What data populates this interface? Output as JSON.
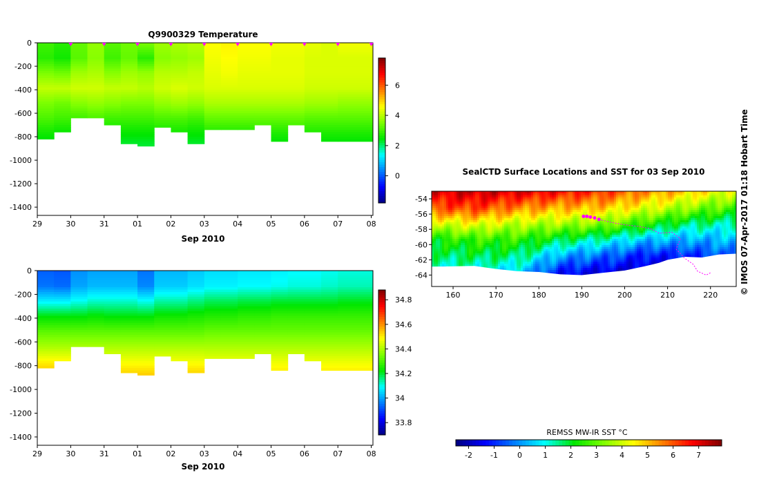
{
  "colors": {
    "jet": [
      "#00007f",
      "#0000ff",
      "#007fff",
      "#00ffff",
      "#00e600",
      "#7fff00",
      "#ffff00",
      "#ff7f00",
      "#ff0000",
      "#7f0000"
    ],
    "land": "#ffffff",
    "marker": "#ff00ff",
    "track": "#ff00ff"
  },
  "credit_text": "© IMOS 07-Apr-2017 01:18 Hobart Time",
  "chart_data": [
    {
      "type": "heatmap",
      "title": "Q9900329  Temperature",
      "xlabel": "Sep 2010",
      "ylabel": "",
      "x_tick_labels": [
        "29",
        "30",
        "31",
        "01",
        "02",
        "03",
        "04",
        "05",
        "06",
        "07",
        "08"
      ],
      "y_tick_labels": [
        "0",
        "-200",
        "-400",
        "-600",
        "-800",
        "-1000",
        "-1200",
        "-1400"
      ],
      "ylim": [
        -1470,
        0
      ],
      "colorbar": {
        "min": -1.8,
        "max": 7.8,
        "tick_labels": [
          "0",
          "2",
          "4",
          "6"
        ]
      },
      "profile_markers_days": [
        30,
        31,
        32,
        33,
        34,
        35,
        36,
        37,
        38,
        39
      ],
      "profiles": [
        {
          "day": 29.0,
          "max_depth": 820,
          "temps": [
            3.0,
            2.8,
            3.5,
            4.1,
            3.5,
            3.1,
            2.6,
            2.2
          ]
        },
        {
          "day": 29.5,
          "max_depth": 760,
          "temps": [
            2.8,
            2.6,
            3.4,
            4.1,
            3.4,
            3.0,
            2.5,
            2.2
          ]
        },
        {
          "day": 30.0,
          "max_depth": 630,
          "temps": [
            3.3,
            3.2,
            3.8,
            4.2,
            3.6,
            3.0,
            2.5,
            2.2
          ]
        },
        {
          "day": 30.5,
          "max_depth": 640,
          "temps": [
            3.7,
            3.6,
            3.9,
            4.2,
            3.7,
            3.1,
            2.6,
            2.2
          ]
        },
        {
          "day": 31.0,
          "max_depth": 700,
          "temps": [
            3.2,
            3.0,
            3.6,
            4.1,
            3.6,
            3.0,
            2.5,
            2.2
          ]
        },
        {
          "day": 31.5,
          "max_depth": 860,
          "temps": [
            3.4,
            3.3,
            3.8,
            4.1,
            3.5,
            3.0,
            2.5,
            2.2
          ]
        },
        {
          "day": 32.0,
          "max_depth": 880,
          "temps": [
            3.5,
            2.8,
            3.7,
            4.0,
            3.5,
            3.0,
            2.5,
            2.2
          ]
        },
        {
          "day": 32.5,
          "max_depth": 720,
          "temps": [
            3.8,
            3.6,
            4.0,
            4.2,
            3.7,
            3.1,
            2.6,
            2.2
          ]
        },
        {
          "day": 33.0,
          "max_depth": 750,
          "temps": [
            3.9,
            3.7,
            4.0,
            4.3,
            3.8,
            3.1,
            2.6,
            2.2
          ]
        },
        {
          "day": 33.5,
          "max_depth": 860,
          "temps": [
            4.0,
            3.8,
            4.1,
            4.2,
            3.7,
            3.0,
            2.5,
            2.2
          ]
        },
        {
          "day": 34.0,
          "max_depth": 740,
          "temps": [
            4.6,
            4.5,
            4.4,
            4.3,
            3.9,
            3.3,
            2.7,
            2.3
          ]
        },
        {
          "day": 34.5,
          "max_depth": 730,
          "temps": [
            4.7,
            4.6,
            4.5,
            4.3,
            3.9,
            3.3,
            2.7,
            2.3
          ]
        },
        {
          "day": 35.0,
          "max_depth": 730,
          "temps": [
            4.6,
            4.5,
            4.4,
            4.3,
            3.9,
            3.3,
            2.7,
            2.3
          ]
        },
        {
          "day": 35.5,
          "max_depth": 700,
          "temps": [
            4.6,
            4.5,
            4.4,
            4.3,
            3.9,
            3.3,
            2.8,
            2.3
          ]
        },
        {
          "day": 36.0,
          "max_depth": 840,
          "temps": [
            4.5,
            4.4,
            4.4,
            4.3,
            3.9,
            3.3,
            2.7,
            2.3
          ]
        },
        {
          "day": 36.5,
          "max_depth": 700,
          "temps": [
            4.5,
            4.4,
            4.4,
            4.3,
            3.9,
            3.3,
            2.8,
            2.3
          ]
        },
        {
          "day": 37.0,
          "max_depth": 750,
          "temps": [
            4.4,
            4.3,
            4.3,
            4.2,
            3.8,
            3.2,
            2.7,
            2.3
          ]
        },
        {
          "day": 37.5,
          "max_depth": 830,
          "temps": [
            4.3,
            4.3,
            4.3,
            4.2,
            3.8,
            3.2,
            2.7,
            2.3
          ]
        },
        {
          "day": 38.0,
          "max_depth": 840,
          "temps": [
            4.5,
            4.3,
            4.3,
            4.2,
            3.7,
            3.2,
            2.7,
            2.3
          ]
        }
      ]
    },
    {
      "type": "heatmap",
      "title": "",
      "xlabel": "Sep 2010",
      "ylabel": "",
      "x_tick_labels": [
        "29",
        "30",
        "31",
        "01",
        "02",
        "03",
        "04",
        "05",
        "06",
        "07",
        "08"
      ],
      "y_tick_labels": [
        "0",
        "-200",
        "-400",
        "-600",
        "-800",
        "-1000",
        "-1200",
        "-1400"
      ],
      "ylim": [
        -1470,
        0
      ],
      "colorbar": {
        "min": 33.7,
        "max": 34.88,
        "tick_labels": [
          "33.8",
          "34",
          "34.2",
          "34.4",
          "34.6",
          "34.8"
        ]
      },
      "profiles": [
        {
          "day": 29.0,
          "max_depth": 820,
          "salin": [
            33.93,
            33.95,
            34.08,
            34.22,
            34.32,
            34.4,
            34.5,
            34.58
          ]
        },
        {
          "day": 29.5,
          "max_depth": 760,
          "salin": [
            33.92,
            33.94,
            34.08,
            34.22,
            34.32,
            34.4,
            34.5,
            34.56
          ]
        },
        {
          "day": 30.0,
          "max_depth": 630,
          "salin": [
            33.98,
            34.0,
            34.1,
            34.22,
            34.32,
            34.4,
            34.48,
            34.55
          ]
        },
        {
          "day": 30.5,
          "max_depth": 640,
          "salin": [
            34.0,
            34.02,
            34.12,
            34.23,
            34.32,
            34.4,
            34.48,
            34.55
          ]
        },
        {
          "day": 31.0,
          "max_depth": 700,
          "salin": [
            34.0,
            34.02,
            34.12,
            34.22,
            34.32,
            34.4,
            34.48,
            34.55
          ]
        },
        {
          "day": 31.5,
          "max_depth": 860,
          "salin": [
            34.0,
            34.02,
            34.12,
            34.22,
            34.32,
            34.4,
            34.48,
            34.55
          ]
        },
        {
          "day": 32.0,
          "max_depth": 880,
          "salin": [
            33.95,
            33.97,
            34.1,
            34.22,
            34.32,
            34.4,
            34.48,
            34.55
          ]
        },
        {
          "day": 32.5,
          "max_depth": 720,
          "salin": [
            34.02,
            34.04,
            34.14,
            34.24,
            34.32,
            34.4,
            34.48,
            34.55
          ]
        },
        {
          "day": 33.0,
          "max_depth": 750,
          "salin": [
            34.02,
            34.04,
            34.14,
            34.24,
            34.32,
            34.4,
            34.48,
            34.55
          ]
        },
        {
          "day": 33.5,
          "max_depth": 860,
          "salin": [
            34.04,
            34.06,
            34.16,
            34.25,
            34.32,
            34.4,
            34.48,
            34.55
          ]
        },
        {
          "day": 34.0,
          "max_depth": 740,
          "salin": [
            34.06,
            34.08,
            34.18,
            34.26,
            34.33,
            34.4,
            34.47,
            34.53
          ]
        },
        {
          "day": 34.5,
          "max_depth": 730,
          "salin": [
            34.06,
            34.08,
            34.18,
            34.26,
            34.33,
            34.4,
            34.47,
            34.53
          ]
        },
        {
          "day": 35.0,
          "max_depth": 730,
          "salin": [
            34.07,
            34.09,
            34.19,
            34.27,
            34.33,
            34.4,
            34.47,
            34.53
          ]
        },
        {
          "day": 35.5,
          "max_depth": 700,
          "salin": [
            34.07,
            34.09,
            34.19,
            34.27,
            34.33,
            34.4,
            34.47,
            34.53
          ]
        },
        {
          "day": 36.0,
          "max_depth": 840,
          "salin": [
            34.08,
            34.1,
            34.2,
            34.28,
            34.33,
            34.4,
            34.47,
            34.53
          ]
        },
        {
          "day": 36.5,
          "max_depth": 700,
          "salin": [
            34.09,
            34.11,
            34.2,
            34.28,
            34.33,
            34.4,
            34.47,
            34.53
          ]
        },
        {
          "day": 37.0,
          "max_depth": 750,
          "salin": [
            34.09,
            34.11,
            34.2,
            34.28,
            34.33,
            34.4,
            34.47,
            34.53
          ]
        },
        {
          "day": 37.5,
          "max_depth": 830,
          "salin": [
            34.1,
            34.12,
            34.2,
            34.28,
            34.33,
            34.4,
            34.47,
            34.53
          ]
        },
        {
          "day": 38.0,
          "max_depth": 840,
          "salin": [
            34.11,
            34.13,
            34.21,
            34.28,
            34.33,
            34.4,
            34.47,
            34.53
          ]
        }
      ]
    },
    {
      "type": "heatmap",
      "title": "SealCTD Surface Locations and SST for 03 Sep 2010",
      "xlabel": "",
      "ylabel": "",
      "x_tick_labels": [
        "160",
        "170",
        "180",
        "190",
        "200",
        "210",
        "220"
      ],
      "y_tick_labels": [
        "-54",
        "-56",
        "-58",
        "-60",
        "-62",
        "-64"
      ],
      "xlim": [
        155,
        226
      ],
      "ylim": [
        -65.5,
        -53.0
      ],
      "colorbar": {
        "label": "REMSS MW-IR SST °C",
        "min": -2.5,
        "max": 7.9,
        "tick_labels": [
          "-2",
          "-1",
          "0",
          "1",
          "2",
          "3",
          "4",
          "5",
          "6",
          "7"
        ]
      },
      "sst_bands": [
        {
          "lon": 155,
          "t": [
            7.0,
            6.0,
            4.0,
            2.2,
            1.6,
            1.0,
            0.8
          ]
        },
        {
          "lon": 165,
          "t": [
            7.2,
            6.2,
            4.3,
            2.6,
            1.8,
            1.0,
            0.6
          ]
        },
        {
          "lon": 175,
          "t": [
            7.0,
            5.5,
            3.8,
            2.5,
            1.6,
            0.6,
            -0.4
          ]
        },
        {
          "lon": 185,
          "t": [
            6.6,
            5.1,
            3.6,
            1.8,
            0.2,
            -1.2,
            -1.8
          ]
        },
        {
          "lon": 195,
          "t": [
            6.2,
            4.9,
            3.3,
            1.2,
            -0.4,
            -1.6,
            -1.9
          ]
        },
        {
          "lon": 205,
          "t": [
            5.4,
            4.2,
            2.4,
            0.4,
            -1.2,
            -1.8,
            -1.9
          ]
        },
        {
          "lon": 215,
          "t": [
            4.8,
            3.4,
            1.6,
            0.2,
            -1.0,
            -1.7,
            -1.9
          ]
        },
        {
          "lon": 226,
          "t": [
            4.0,
            2.6,
            1.2,
            0.4,
            -0.4,
            -1.0,
            -1.4
          ]
        }
      ],
      "ice_edge": [
        [
          155,
          -62.9
        ],
        [
          165,
          -62.8
        ],
        [
          170,
          -63.2
        ],
        [
          175,
          -63.5
        ],
        [
          180,
          -63.6
        ],
        [
          185,
          -63.9
        ],
        [
          190,
          -64.0
        ],
        [
          195,
          -63.7
        ],
        [
          200,
          -63.4
        ],
        [
          205,
          -62.8
        ],
        [
          208,
          -62.4
        ],
        [
          210,
          -62.0
        ],
        [
          214,
          -61.6
        ],
        [
          218,
          -61.7
        ],
        [
          222,
          -61.3
        ],
        [
          226,
          -61.2
        ]
      ],
      "surface_locations": [
        [
          190.4,
          -56.3
        ],
        [
          191.2,
          -56.3
        ],
        [
          192.0,
          -56.4
        ],
        [
          193.0,
          -56.5
        ],
        [
          194.0,
          -56.7
        ]
      ],
      "track": [
        [
          194.0,
          -56.7
        ],
        [
          197,
          -57.1
        ],
        [
          200,
          -57.4
        ],
        [
          203,
          -57.6
        ],
        [
          206,
          -57.9
        ],
        [
          208,
          -58.5
        ],
        [
          211,
          -58.4
        ],
        [
          213,
          -59.2
        ],
        [
          212,
          -60.6
        ],
        [
          214,
          -61.8
        ],
        [
          216,
          -62.6
        ],
        [
          217,
          -63.5
        ],
        [
          219,
          -64.0
        ],
        [
          220,
          -63.7
        ]
      ]
    }
  ]
}
